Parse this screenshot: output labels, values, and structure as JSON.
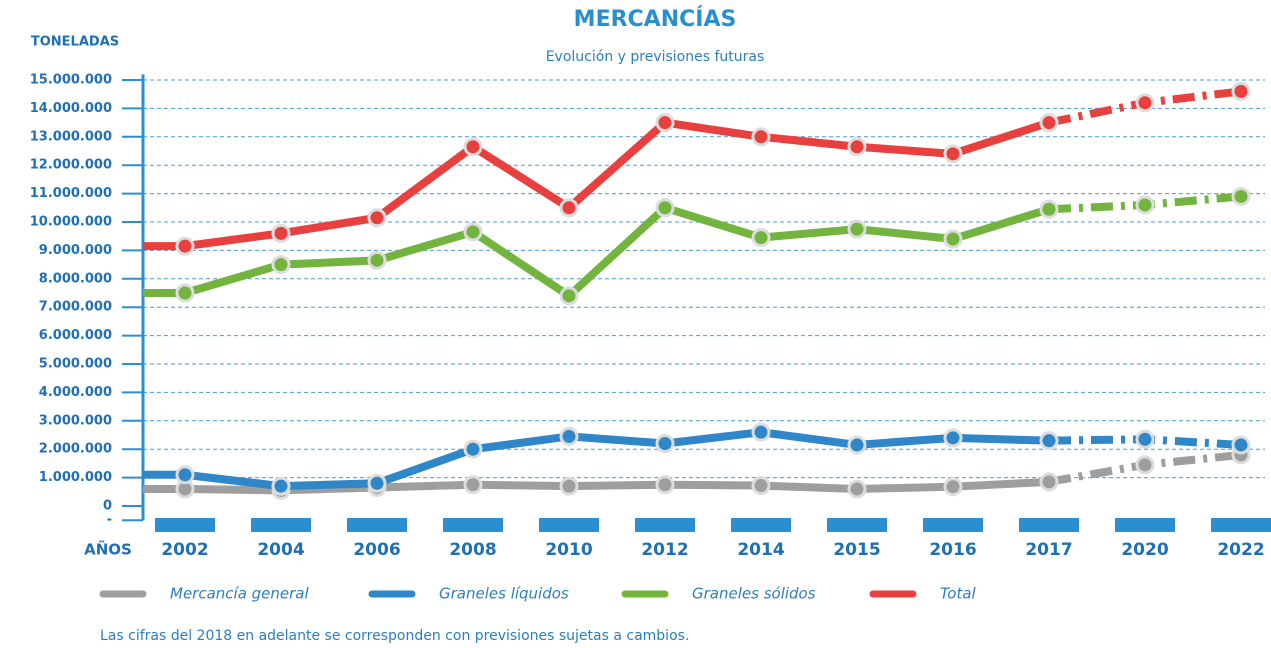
{
  "chart_data": {
    "type": "line",
    "title": "MERCANCÍAS",
    "subtitle": "Evolución y previsiones futuras",
    "y_label": "TONELADAS",
    "x_label": "AÑOS",
    "note": "Las cifras del 2018 en adelante se corresponden con previsiones sujetas a cambios.",
    "categories": [
      "2002",
      "2004",
      "2006",
      "2008",
      "2010",
      "2012",
      "2014",
      "2015",
      "2016",
      "2017",
      "2020",
      "2022"
    ],
    "forecast_from": 9,
    "series": [
      {
        "name": "Mercancía general",
        "color": "#9e9e9e",
        "values": [
          600000,
          550000,
          650000,
          750000,
          700000,
          750000,
          720000,
          600000,
          680000,
          850000,
          1450000,
          1800000
        ]
      },
      {
        "name": "Graneles líquidos",
        "color": "#2f86c8",
        "values": [
          1100000,
          700000,
          800000,
          2000000,
          2450000,
          2200000,
          2600000,
          2150000,
          2400000,
          2300000,
          2350000,
          2150000
        ]
      },
      {
        "name": "Graneles sólidos",
        "color": "#72b43e",
        "values": [
          7500000,
          8500000,
          8650000,
          9650000,
          7400000,
          10500000,
          9450000,
          9750000,
          9400000,
          10450000,
          10600000,
          10900000
        ]
      },
      {
        "name": "Total",
        "color": "#e8403e",
        "values": [
          9150000,
          9600000,
          10150000,
          12650000,
          10500000,
          13500000,
          13000000,
          12650000,
          12400000,
          13500000,
          14200000,
          14600000
        ]
      }
    ],
    "ylim": [
      -500000,
      15200000
    ],
    "yticks": [
      {
        "value": -500000,
        "label": "-"
      },
      0,
      {
        "value": 1000000,
        "label": "1.000.000"
      },
      {
        "value": 2000000,
        "label": "2.000.000"
      },
      {
        "value": 3000000,
        "label": "3.000.000"
      },
      {
        "value": 4000000,
        "label": "4.000.000"
      },
      {
        "value": 5000000,
        "label": "5.000.000"
      },
      {
        "value": 6000000,
        "label": "6.000.000"
      },
      {
        "value": 7000000,
        "label": "7.000.000"
      },
      {
        "value": 8000000,
        "label": "8.000.000"
      },
      {
        "value": 9000000,
        "label": "9.000.000"
      },
      {
        "value": 10000000,
        "label": "10.000.000"
      },
      {
        "value": 11000000,
        "label": "11.000.000"
      },
      {
        "value": 12000000,
        "label": "12.000.000"
      },
      {
        "value": 13000000,
        "label": "13.000.000"
      },
      {
        "value": 14000000,
        "label": "14.000.000"
      },
      {
        "value": 15000000,
        "label": "15.000.000"
      }
    ],
    "grid": true,
    "axis_color": "#2a8fd0"
  }
}
